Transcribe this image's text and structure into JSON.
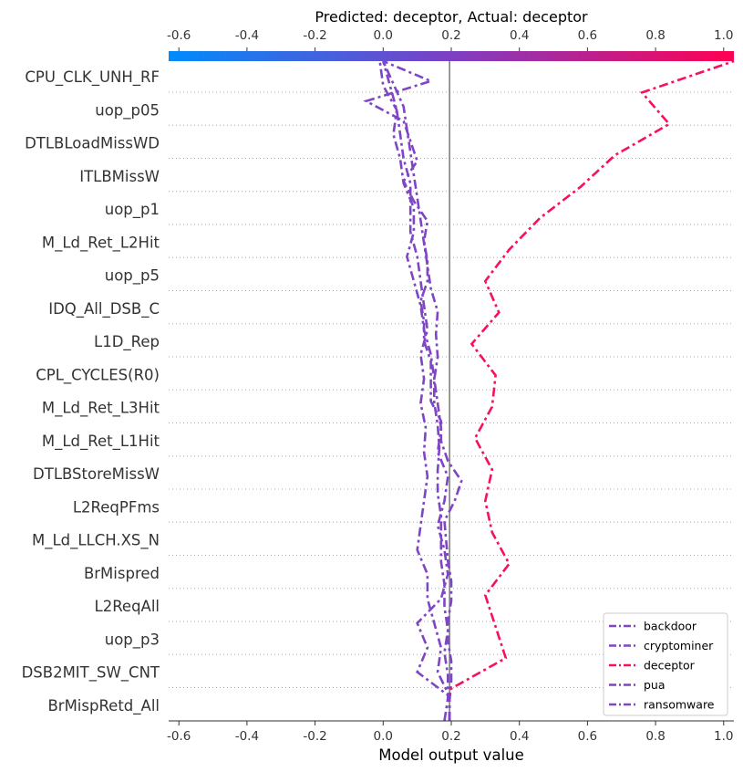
{
  "chart_data": {
    "type": "line",
    "title": "Predicted: deceptor, Actual: deceptor",
    "xlabel": "Model output value",
    "xlim": [
      -0.63,
      1.03
    ],
    "xticks": [
      "-0.6",
      "-0.4",
      "-0.2",
      "0.0",
      "0.2",
      "0.4",
      "0.6",
      "0.8",
      "1.0"
    ],
    "xtick_values": [
      -0.6,
      -0.4,
      -0.2,
      0.0,
      0.2,
      0.4,
      0.6,
      0.8,
      1.0
    ],
    "base_value": 0.195,
    "colorbar": {
      "low_color": "#008bfb",
      "mid_color": "#7c3fc4",
      "high_color": "#ff0052"
    },
    "legend_position": "lower-right",
    "features": [
      "CPU_CLK_UNH_RF",
      "uop_p05",
      "DTLBLoadMissWD",
      "ITLBMissW",
      "uop_p1",
      "M_Ld_Ret_L2Hit",
      "uop_p5",
      "IDQ_All_DSB_C",
      "L1D_Rep",
      "CPL_CYCLES(R0)",
      "M_Ld_Ret_L3Hit",
      "M_Ld_Ret_L1Hit",
      "DTLBStoreMissW",
      "L2ReqPFms",
      "M_Ld_LLCH.XS_N",
      "BrMispred",
      "L2ReqAll",
      "uop_p3",
      "DSB2MIT_SW_CNT",
      "BrMispRetd_All"
    ],
    "series": [
      {
        "name": "backdoor",
        "color": "#7e45c4",
        "values": [
          0.195,
          0.195,
          0.2,
          0.2,
          0.19,
          0.19,
          0.2,
          0.2,
          0.19,
          0.185,
          0.18,
          0.21,
          0.23,
          0.19,
          0.17,
          0.17,
          0.14,
          0.14,
          0.14,
          0.12,
          0.12,
          0.11,
          0.13,
          0.13,
          0.12,
          0.13,
          0.09,
          0.06,
          0.1,
          0.08,
          0.06,
          -0.05,
          0.14,
          0.0
        ]
      },
      {
        "name": "cryptominer",
        "color": "#7e45c4",
        "values": [
          0.18,
          0.19,
          0.19,
          0.18,
          0.19,
          0.18,
          0.18,
          0.17,
          0.17,
          0.17,
          0.16,
          0.16,
          0.165,
          0.16,
          0.15,
          0.15,
          0.16,
          0.155,
          0.16,
          0.14,
          0.13,
          0.12,
          0.11,
          0.1,
          0.09,
          0.08,
          0.07,
          0.06,
          0.03,
          0.0
        ]
      },
      {
        "name": "deceptor",
        "color": "#f5115c",
        "values": [
          0.195,
          0.195,
          0.36,
          0.33,
          0.3,
          0.37,
          0.32,
          0.3,
          0.32,
          0.27,
          0.32,
          0.33,
          0.26,
          0.34,
          0.3,
          0.37,
          0.46,
          0.58,
          0.68,
          0.84,
          0.76,
          1.03
        ]
      },
      {
        "name": "pua",
        "color": "#7e45c4",
        "values": [
          0.195,
          0.195,
          0.16,
          0.17,
          0.15,
          0.13,
          0.13,
          0.1,
          0.11,
          0.12,
          0.13,
          0.12,
          0.125,
          0.11,
          0.12,
          0.11,
          0.13,
          0.12,
          0.11,
          0.1,
          0.08,
          0.08,
          0.08,
          0.06,
          0.05,
          0.04,
          0.02,
          0.0
        ]
      },
      {
        "name": "ransomware",
        "color": "#7e45c4",
        "values": [
          0.195,
          0.195,
          0.1,
          0.13,
          0.1,
          0.17,
          0.19,
          0.18,
          0.16,
          0.18,
          0.19,
          0.16,
          0.17,
          0.16,
          0.15,
          0.14,
          0.12,
          0.11,
          0.09,
          0.07,
          0.09,
          0.09,
          0.06,
          0.05,
          0.03,
          0.04,
          0.0,
          -0.01
        ]
      }
    ]
  }
}
